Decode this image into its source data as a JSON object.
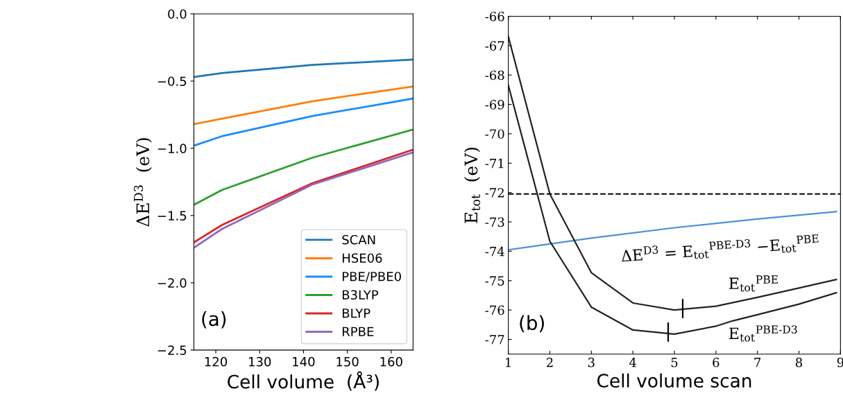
{
  "chart_data": [
    {
      "type": "line",
      "xlabel": "Cell volume  (Å³)",
      "ylabel": "ΔE$^{D3}$  (eV)",
      "xlim": [
        115,
        165
      ],
      "ylim": [
        -2.5,
        0.0
      ],
      "xticks": [
        120,
        130,
        140,
        150,
        160
      ],
      "yticks": [
        {
          "value": -2.5,
          "label": "−2.5"
        },
        {
          "value": -2.0,
          "label": "−2.0"
        },
        {
          "value": -1.5,
          "label": "−1.5"
        },
        {
          "value": -1.0,
          "label": "−1.0"
        },
        {
          "value": -0.5,
          "label": "−0.5"
        },
        {
          "value": 0.0,
          "label": "0.0"
        }
      ],
      "legend": "lower right",
      "grid": false,
      "annotations": [
        "(a)"
      ],
      "x": [
        115,
        121.4,
        142,
        165
      ],
      "series": [
        {
          "name": "SCAN",
          "color": "#1f77b4",
          "values": [
            -0.47,
            -0.44,
            -0.38,
            -0.34
          ]
        },
        {
          "name": "HSE06",
          "color": "#ff7f0e",
          "values": [
            -0.82,
            -0.78,
            -0.65,
            -0.54
          ]
        },
        {
          "name": "PBE/PBE0",
          "color": "#1a8cff",
          "values": [
            -0.98,
            -0.91,
            -0.76,
            -0.63
          ]
        },
        {
          "name": "B3LYP",
          "color": "#2ca02c",
          "values": [
            -1.42,
            -1.31,
            -1.07,
            -0.86
          ]
        },
        {
          "name": "BLYP",
          "color": "#d62728",
          "values": [
            -1.7,
            -1.57,
            -1.26,
            -1.01
          ]
        },
        {
          "name": "RPBE",
          "color": "#9467bd",
          "values": [
            -1.74,
            -1.6,
            -1.27,
            -1.03
          ]
        }
      ]
    },
    {
      "type": "line",
      "xlabel": "Cell volume scan",
      "ylabel": "E$_{tot}$  (eV)",
      "xlim": [
        1,
        9
      ],
      "ylim": [
        -77.5,
        -66
      ],
      "xticks": [
        1,
        2,
        3,
        4,
        5,
        6,
        7,
        8,
        9
      ],
      "yticks": [
        -77,
        -76,
        -75,
        -74,
        -73,
        -72,
        -71,
        -70,
        -69,
        -68,
        -67,
        -66
      ],
      "legend": false,
      "grid": false,
      "annotations": [
        "(b)"
      ],
      "ref_lines": [
        {
          "axis": "y",
          "value": -72.05,
          "color": "#000000",
          "line_style": "dashed"
        }
      ],
      "series": [
        {
          "name": "ΔE$^{D3}$ = E$_{tot}$$^{PBE‑D3}$ −E$_{tot}$$^{PBE}$",
          "color": "#4a90d9",
          "x": [
            1,
            3,
            5,
            7,
            8.9
          ],
          "values": [
            -73.95,
            -73.55,
            -73.2,
            -72.9,
            -72.65
          ]
        },
        {
          "name": "E$_{tot}$$^{PBE}$",
          "color": "#222222",
          "x": [
            1,
            2,
            3,
            4,
            5,
            6,
            7,
            8,
            8.9
          ],
          "values": [
            -66.69,
            -72.05,
            -74.73,
            -75.76,
            -76.0,
            -75.87,
            -75.57,
            -75.25,
            -74.96
          ]
        },
        {
          "name": "E$_{tot}$$^{PBE‑D3}$",
          "color": "#222222",
          "x": [
            1,
            2,
            3,
            4,
            5,
            6,
            6.4,
            7,
            8,
            8.9
          ],
          "values": [
            -68.35,
            -73.66,
            -75.9,
            -76.68,
            -76.82,
            -76.55,
            -76.37,
            -76.16,
            -75.8,
            -75.41
          ]
        },
        {
          "color": "#000000",
          "x": [
            4.85,
            4.85
          ],
          "values": [
            -77.05,
            -76.45
          ]
        },
        {
          "color": "#000000",
          "x": [
            5.2,
            5.2
          ],
          "values": [
            -76.25,
            -75.65
          ]
        }
      ]
    }
  ]
}
